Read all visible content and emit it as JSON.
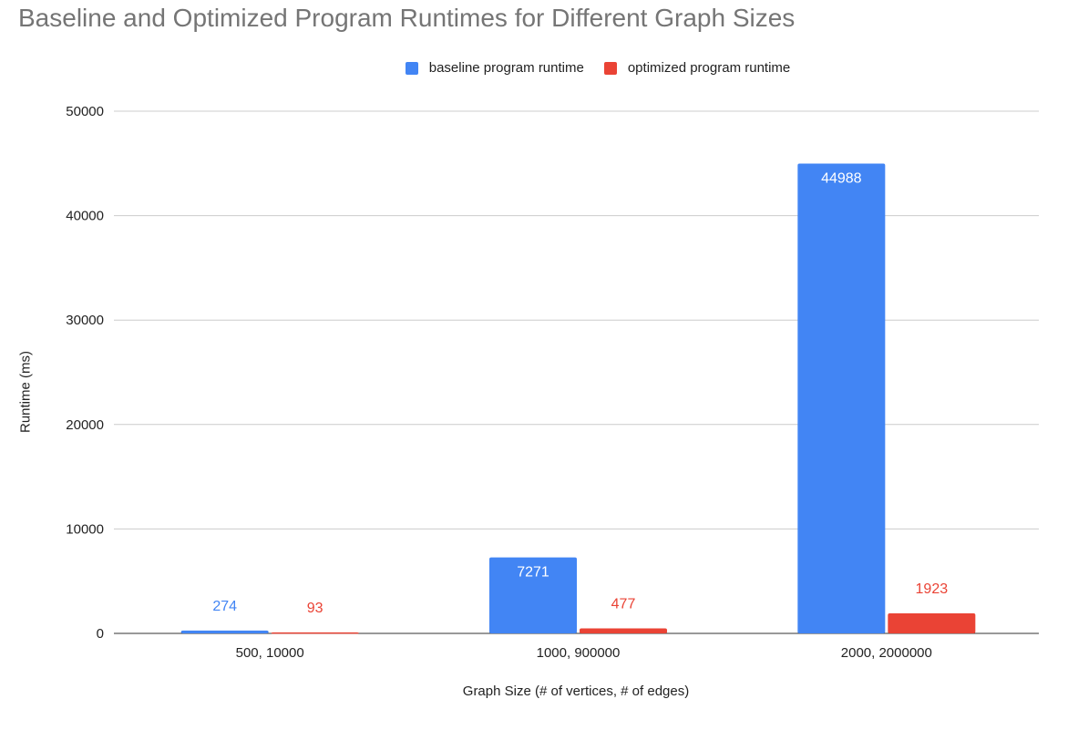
{
  "chart_data": {
    "type": "bar",
    "title": "Baseline and Optimized Program Runtimes for Different Graph Sizes",
    "xlabel": "Graph Size (# of vertices, # of edges)",
    "ylabel": "Runtime (ms)",
    "categories": [
      "500, 10000",
      "1000, 900000",
      "2000, 2000000"
    ],
    "series": [
      {
        "name": "baseline program runtime",
        "color": "#4285f4",
        "values": [
          274,
          7271,
          44988
        ]
      },
      {
        "name": "optimized program runtime",
        "color": "#ea4335",
        "values": [
          93,
          477,
          1923
        ]
      }
    ],
    "ylim": [
      0,
      50000
    ],
    "yticks": [
      0,
      10000,
      20000,
      30000,
      40000,
      50000
    ],
    "grid": true,
    "legend_position": "top"
  }
}
